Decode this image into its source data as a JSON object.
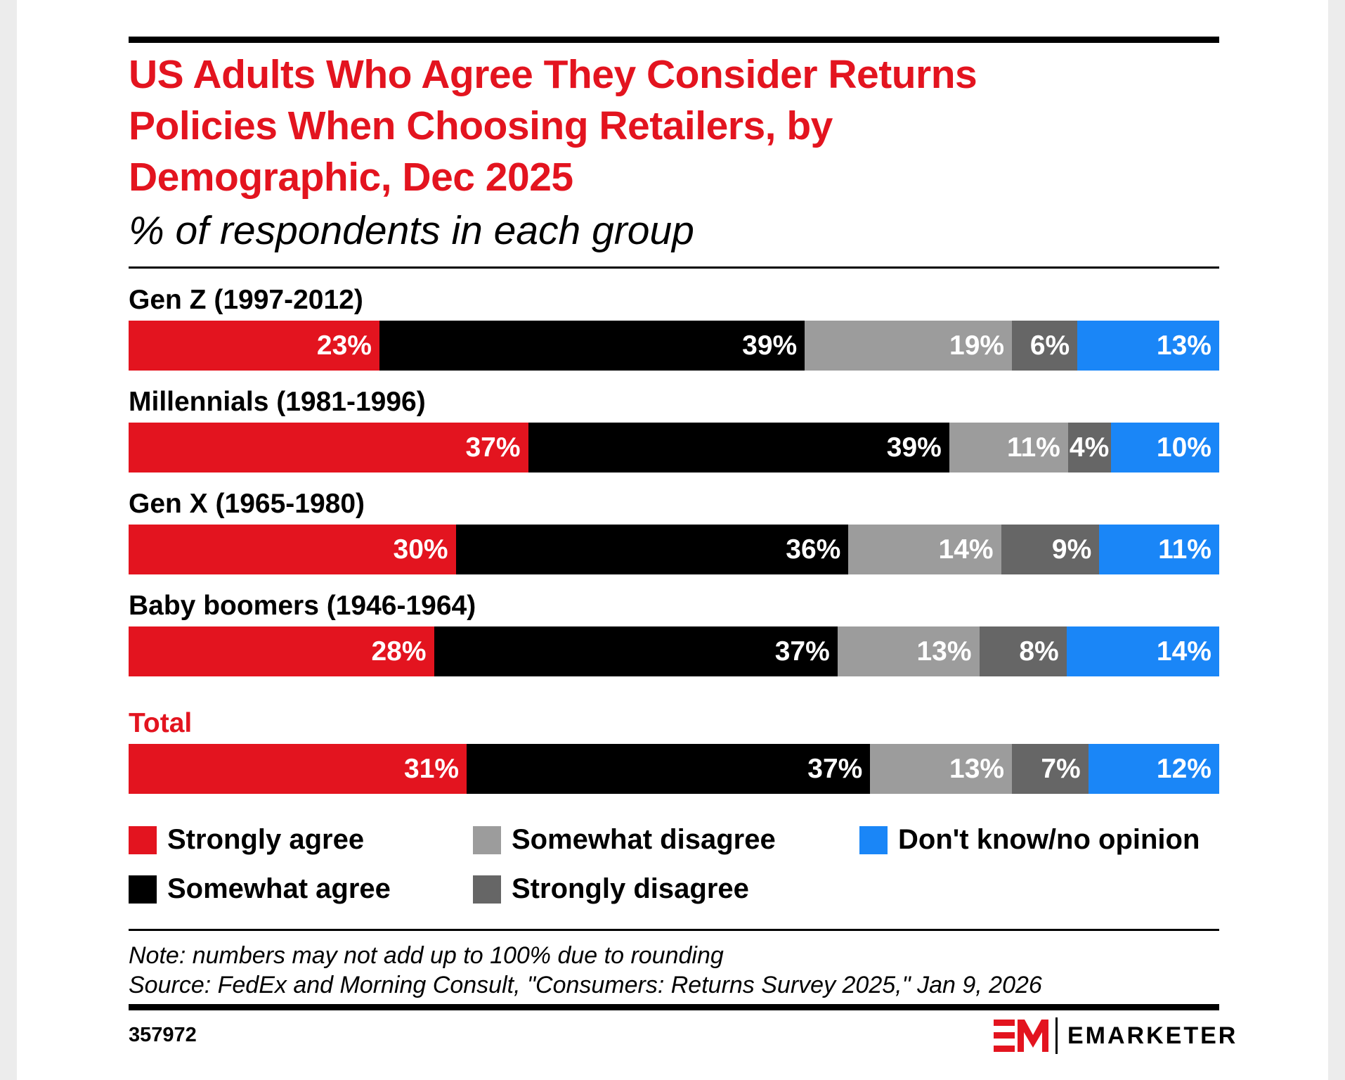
{
  "chart_data": {
    "type": "bar",
    "orientation": "horizontal",
    "stacked": true,
    "title": "US Adults Who Agree They Consider Returns Policies When Choosing Retailers, by Demographic, Dec 2025",
    "title_lines": [
      "US Adults Who Agree They Consider Returns",
      "Policies When Choosing Retailers, by",
      "Demographic, Dec 2025"
    ],
    "subtitle": "% of respondents in each group",
    "categories": [
      "Gen Z (1997-2012)",
      "Millennials (1981-1996)",
      "Gen X (1965-1980)",
      "Baby boomers (1946-1964)",
      "Total"
    ],
    "series": [
      {
        "name": "Strongly agree",
        "color": "#e3141f",
        "values": [
          23,
          37,
          30,
          28,
          31
        ]
      },
      {
        "name": "Somewhat agree",
        "color": "#000000",
        "values": [
          39,
          39,
          36,
          37,
          37
        ]
      },
      {
        "name": "Somewhat disagree",
        "color": "#9c9c9c",
        "values": [
          19,
          11,
          14,
          13,
          13
        ]
      },
      {
        "name": "Strongly disagree",
        "color": "#666666",
        "values": [
          6,
          4,
          9,
          8,
          7
        ]
      },
      {
        "name": "Don't know/no opinion",
        "color": "#1a86f7",
        "values": [
          13,
          10,
          11,
          14,
          12
        ]
      }
    ],
    "value_suffix": "%",
    "legend_position": "bottom"
  },
  "note": "Note: numbers may not add up to 100% due to rounding",
  "source": "Source: FedEx and Morning Consult, \"Consumers: Returns Survey 2025,\" Jan 9, 2026",
  "chart_id": "357972",
  "brand": {
    "name": "EMARKETER",
    "accent_color": "#e3141f"
  }
}
